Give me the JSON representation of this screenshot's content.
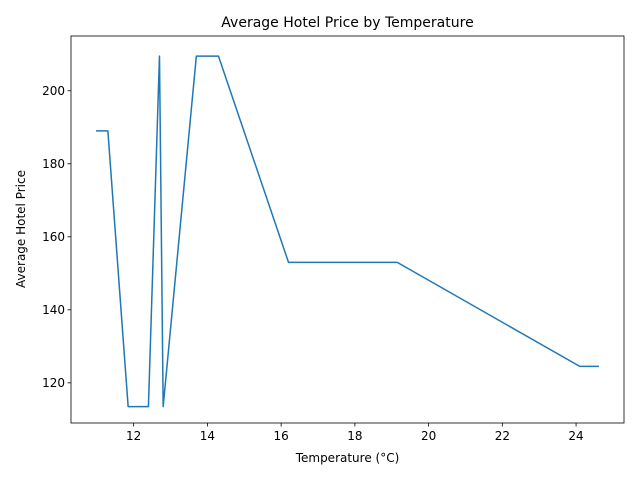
{
  "chart_data": {
    "type": "line",
    "title": "Average Hotel Price by Temperature",
    "xlabel": "Temperature (°C)",
    "ylabel": "Average Hotel Price",
    "xlim": [
      10.3,
      25.3
    ],
    "ylim": [
      109,
      215
    ],
    "xticks": [
      12,
      14,
      16,
      18,
      20,
      22,
      24
    ],
    "yticks": [
      120,
      140,
      160,
      180,
      200
    ],
    "grid": false,
    "series": [
      {
        "color": "#1f77b4",
        "x": [
          11.0,
          11.3,
          11.85,
          12.4,
          12.7,
          12.8,
          13.7,
          14.3,
          16.2,
          19.15,
          24.1,
          24.6
        ],
        "y": [
          189,
          189,
          113.5,
          113.5,
          209.5,
          113.5,
          209.5,
          209.5,
          153,
          153,
          124.5,
          124.5
        ]
      }
    ]
  }
}
